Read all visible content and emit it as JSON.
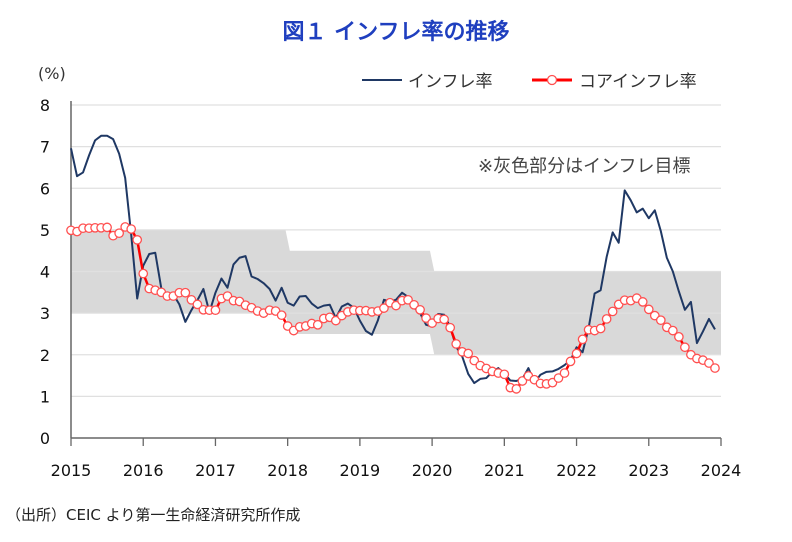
{
  "title": "図１ インフレ率の推移",
  "source": "（出所）CEIC より第一生命経済研究所作成",
  "chart_data": {
    "type": "line",
    "title": "図１ インフレ率の推移",
    "ylabel": "(%)",
    "ylim": [
      0,
      8
    ],
    "yticks": [
      "0",
      "1",
      "2",
      "3",
      "4",
      "5",
      "6",
      "7",
      "8"
    ],
    "xlim": [
      2015,
      2024
    ],
    "xticks": [
      "2015",
      "2016",
      "2017",
      "2018",
      "2019",
      "2020",
      "2021",
      "2022",
      "2023",
      "2024"
    ],
    "grid": true,
    "legend": "top-right",
    "annotation": "※灰色部分はインフレ目標",
    "x_start": "2015-01",
    "x_frequency": "monthly",
    "target_band": [
      {
        "from": "2015-01",
        "to": "2017-12",
        "low": 3,
        "high": 5
      },
      {
        "from": "2018-01",
        "to": "2019-12",
        "low": 2.5,
        "high": 4.5
      },
      {
        "from": "2020-01",
        "to": "2023-12",
        "low": 2,
        "high": 4
      }
    ],
    "band_color": "#d9d9d9",
    "series": [
      {
        "name": "インフレ率",
        "color": "#1f3864",
        "marker": "none",
        "values": [
          6.96,
          6.29,
          6.38,
          6.79,
          7.15,
          7.26,
          7.26,
          7.18,
          6.83,
          6.25,
          4.89,
          3.35,
          4.14,
          4.42,
          4.45,
          3.6,
          3.33,
          3.45,
          3.21,
          2.79,
          3.07,
          3.31,
          3.58,
          3.02,
          3.49,
          3.83,
          3.61,
          4.17,
          4.33,
          4.37,
          3.88,
          3.82,
          3.72,
          3.58,
          3.3,
          3.61,
          3.25,
          3.18,
          3.4,
          3.41,
          3.23,
          3.12,
          3.18,
          3.2,
          2.88,
          3.16,
          3.23,
          3.13,
          2.82,
          2.57,
          2.48,
          2.83,
          3.32,
          3.28,
          3.32,
          3.49,
          3.39,
          3.13,
          3.0,
          2.72,
          2.68,
          2.98,
          2.96,
          2.67,
          2.19,
          1.96,
          1.54,
          1.32,
          1.42,
          1.44,
          1.59,
          1.68,
          1.55,
          1.38,
          1.37,
          1.42,
          1.68,
          1.33,
          1.52,
          1.59,
          1.6,
          1.66,
          1.75,
          1.87,
          2.18,
          2.06,
          2.64,
          3.47,
          3.55,
          4.35,
          4.94,
          4.69,
          5.95,
          5.71,
          5.42,
          5.51,
          5.28,
          5.47,
          4.97,
          4.33,
          4.0,
          3.52,
          3.08,
          3.27,
          2.28,
          2.56,
          2.86,
          2.61
        ]
      },
      {
        "name": "コアインフレ率",
        "color": "#ff0000",
        "marker": "circle",
        "values": [
          4.99,
          4.96,
          5.04,
          5.04,
          5.05,
          5.05,
          5.06,
          4.86,
          4.92,
          5.07,
          5.02,
          4.76,
          3.95,
          3.59,
          3.55,
          3.5,
          3.41,
          3.41,
          3.49,
          3.49,
          3.32,
          3.21,
          3.08,
          3.07,
          3.07,
          3.35,
          3.41,
          3.3,
          3.28,
          3.19,
          3.13,
          3.05,
          3.0,
          3.07,
          3.05,
          2.95,
          2.69,
          2.58,
          2.67,
          2.69,
          2.75,
          2.72,
          2.87,
          2.9,
          2.82,
          2.94,
          3.03,
          3.07,
          3.06,
          3.06,
          3.03,
          3.05,
          3.12,
          3.25,
          3.18,
          3.3,
          3.32,
          3.2,
          3.08,
          2.88,
          2.76,
          2.87,
          2.85,
          2.65,
          2.26,
          2.07,
          2.03,
          1.86,
          1.74,
          1.67,
          1.6,
          1.56,
          1.53,
          1.21,
          1.18,
          1.37,
          1.49,
          1.4,
          1.31,
          1.3,
          1.33,
          1.44,
          1.56,
          1.84,
          2.03,
          2.37,
          2.6,
          2.58,
          2.63,
          2.86,
          3.04,
          3.21,
          3.31,
          3.3,
          3.36,
          3.27,
          3.09,
          2.94,
          2.83,
          2.66,
          2.58,
          2.43,
          2.18,
          2.0,
          1.91,
          1.87,
          1.8,
          1.68
        ]
      }
    ]
  }
}
